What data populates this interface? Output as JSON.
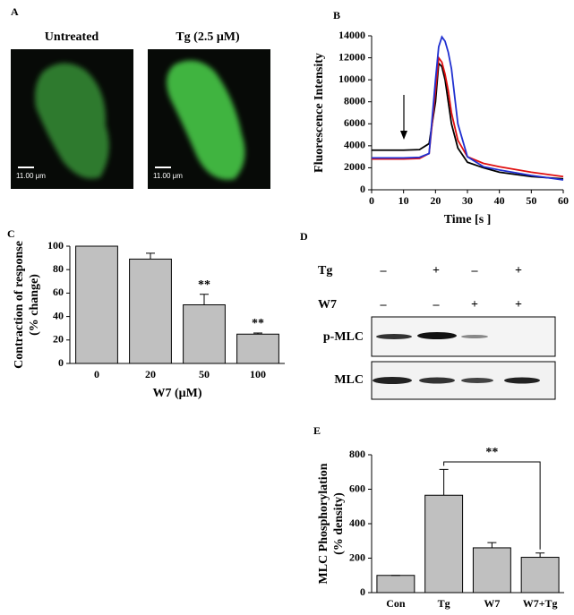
{
  "panel_labels": [
    "A",
    "B",
    "C",
    "D",
    "E"
  ],
  "images": {
    "titles": [
      "Untreated",
      "Tg (2.5 μM)"
    ],
    "scale_labels": [
      "11.00 μm",
      "11.00 μm"
    ]
  },
  "blot": {
    "rows": [
      {
        "label": "Tg",
        "signs": [
          "–",
          "+",
          "–",
          "+"
        ]
      },
      {
        "label": "W7",
        "signs": [
          "–",
          "–",
          "+",
          "+"
        ]
      }
    ],
    "bands": [
      "p-MLC",
      "MLC"
    ]
  },
  "chart_data": [
    {
      "type": "line",
      "xlabel": "Time [s ]",
      "ylabel": "Fluorescence Intensity",
      "x": [
        0,
        5,
        10,
        15,
        18,
        20,
        21,
        22,
        23,
        24,
        25,
        27,
        30,
        35,
        40,
        50,
        60
      ],
      "series": [
        {
          "color": "#000000",
          "values": [
            3600,
            3600,
            3600,
            3650,
            4200,
            8000,
            11500,
            11200,
            10000,
            8000,
            6000,
            3800,
            2500,
            2000,
            1600,
            1200,
            1000
          ]
        },
        {
          "color": "#e01010",
          "values": [
            2800,
            2800,
            2800,
            2850,
            3300,
            9000,
            12000,
            11600,
            10500,
            9000,
            7000,
            4500,
            3000,
            2400,
            2100,
            1600,
            1200
          ]
        },
        {
          "color": "#2030d0",
          "values": [
            2900,
            2900,
            2900,
            2950,
            3300,
            10000,
            13000,
            13900,
            13500,
            12500,
            11000,
            6000,
            3000,
            2100,
            1800,
            1300,
            900
          ]
        }
      ],
      "xlim": [
        0,
        60
      ],
      "xticks": [
        0,
        10,
        20,
        30,
        40,
        50,
        60
      ],
      "ylim": [
        0,
        14000
      ],
      "yticks": [
        0,
        2000,
        4000,
        6000,
        8000,
        10000,
        12000,
        14000
      ]
    },
    {
      "type": "bar",
      "xlabel": "W7 (μM)",
      "ylabel": [
        "Contraction of response",
        "(% change)"
      ],
      "categories": [
        "0",
        "20",
        "50",
        "100"
      ],
      "values": [
        100,
        89,
        50,
        25
      ],
      "errors": [
        0,
        5,
        9,
        1
      ],
      "color": "#c0c0c0",
      "ylim": [
        0,
        100
      ],
      "yticks": [
        0,
        20,
        40,
        60,
        80,
        100
      ],
      "annotations": [
        {
          "text": "**",
          "category": "50"
        },
        {
          "text": "**",
          "category": "100"
        }
      ]
    },
    {
      "type": "bar",
      "ylabel": [
        "MLC Phosphorylation",
        "(% density)"
      ],
      "categories": [
        "Con",
        "Tg",
        "W7",
        "W7+Tg"
      ],
      "values": [
        100,
        565,
        260,
        205
      ],
      "errors": [
        0,
        150,
        30,
        25
      ],
      "color": "#c0c0c0",
      "ylim": [
        0,
        800
      ],
      "yticks": [
        0,
        200,
        400,
        600,
        800
      ],
      "brackets": [
        {
          "text": "**",
          "from": "Tg",
          "to": "W7+Tg"
        }
      ]
    }
  ]
}
